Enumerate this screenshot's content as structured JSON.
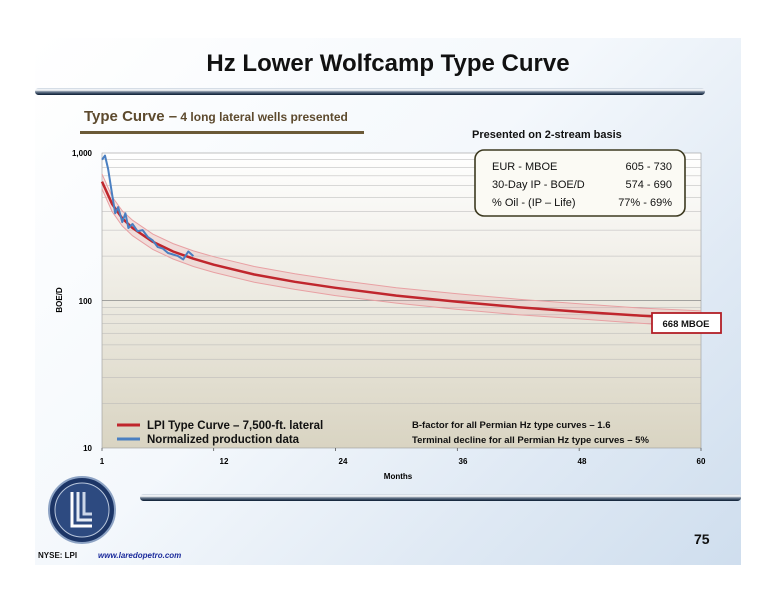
{
  "slide": {
    "title": "Hz Lower Wolfcamp Type Curve",
    "subtitle_main": "Type Curve –",
    "subtitle_small": " 4 long lateral wells presented",
    "presented_note": "Presented on 2-stream basis",
    "page_number": "75",
    "ticker": "NYSE: LPI",
    "url": "www.laredopetro.com",
    "colors": {
      "type_curve": "#c0262d",
      "production": "#4a7fc1",
      "band": "#e8a0a3",
      "callout_border": "#b21f26"
    }
  },
  "summary_box": {
    "rows": [
      {
        "label": "EUR - MBOE",
        "value": "605 - 730"
      },
      {
        "label": "30-Day IP - BOE/D",
        "value": "574 - 690"
      },
      {
        "label": "% Oil - (IP – Life)",
        "value": "77% - 69%"
      }
    ]
  },
  "footnotes": {
    "b_factor": "B-factor for all Permian Hz type curves – 1.6",
    "terminal_decline": "Terminal decline for all Permian Hz type curves – 5%"
  },
  "chart_data": {
    "type": "line",
    "xlabel": "Months",
    "ylabel": "BOE/D",
    "y_scale": "log",
    "xlim": [
      1,
      60
    ],
    "ylim": [
      10,
      1000
    ],
    "x_ticks": [
      "1",
      "12",
      "24",
      "36",
      "48",
      "60"
    ],
    "y_ticks": [
      "10",
      "100",
      "1,000"
    ],
    "legend": [
      "LPI Type Curve – 7,500-ft. lateral",
      "Normalized production data"
    ],
    "legend_position": "bottom-left",
    "callout": "668 MBOE",
    "series": [
      {
        "name": "LPI Type Curve – 7,500-ft. lateral",
        "x": [
          1,
          2,
          3,
          4,
          6,
          8,
          10,
          12,
          16,
          20,
          24,
          30,
          36,
          42,
          48,
          54,
          60
        ],
        "y": [
          640,
          450,
          360,
          310,
          250,
          215,
          192,
          175,
          150,
          134,
          122,
          108,
          98,
          90,
          84,
          79,
          75
        ],
        "band_upper": [
          720,
          505,
          405,
          350,
          282,
          243,
          217,
          198,
          170,
          152,
          138,
          122,
          111,
          102,
          95,
          89,
          85
        ],
        "band_lower": [
          570,
          400,
          320,
          275,
          222,
          191,
          170,
          155,
          133,
          119,
          108,
          96,
          87,
          80,
          75,
          70,
          66
        ]
      },
      {
        "name": "Normalized production data",
        "x": [
          1,
          1.3,
          1.6,
          2,
          2.3,
          2.6,
          3,
          3.3,
          3.6,
          4,
          4.5,
          5,
          5.5,
          6,
          6.5,
          7,
          7.5,
          8,
          8.5,
          9,
          9.5,
          10
        ],
        "y": [
          900,
          960,
          780,
          520,
          390,
          430,
          340,
          390,
          310,
          330,
          295,
          300,
          270,
          255,
          230,
          225,
          210,
          205,
          200,
          190,
          215,
          200
        ]
      }
    ]
  }
}
